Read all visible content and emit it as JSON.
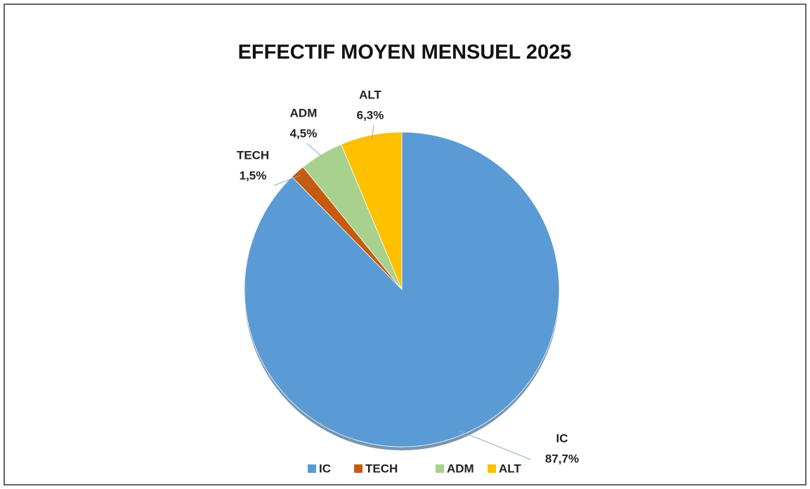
{
  "chart_data": {
    "type": "pie",
    "title": "EFFECTIF MOYEN MENSUEL 2025",
    "categories": [
      "IC",
      "TECH",
      "ADM",
      "ALT"
    ],
    "values": [
      87.7,
      1.5,
      4.5,
      6.3
    ],
    "value_labels": [
      "87,7%",
      "1,5%",
      "4,5%",
      "6,3%"
    ],
    "colors": [
      "#5b9bd5",
      "#c55a11",
      "#a9d18e",
      "#ffc000"
    ],
    "legend": "bottom"
  }
}
